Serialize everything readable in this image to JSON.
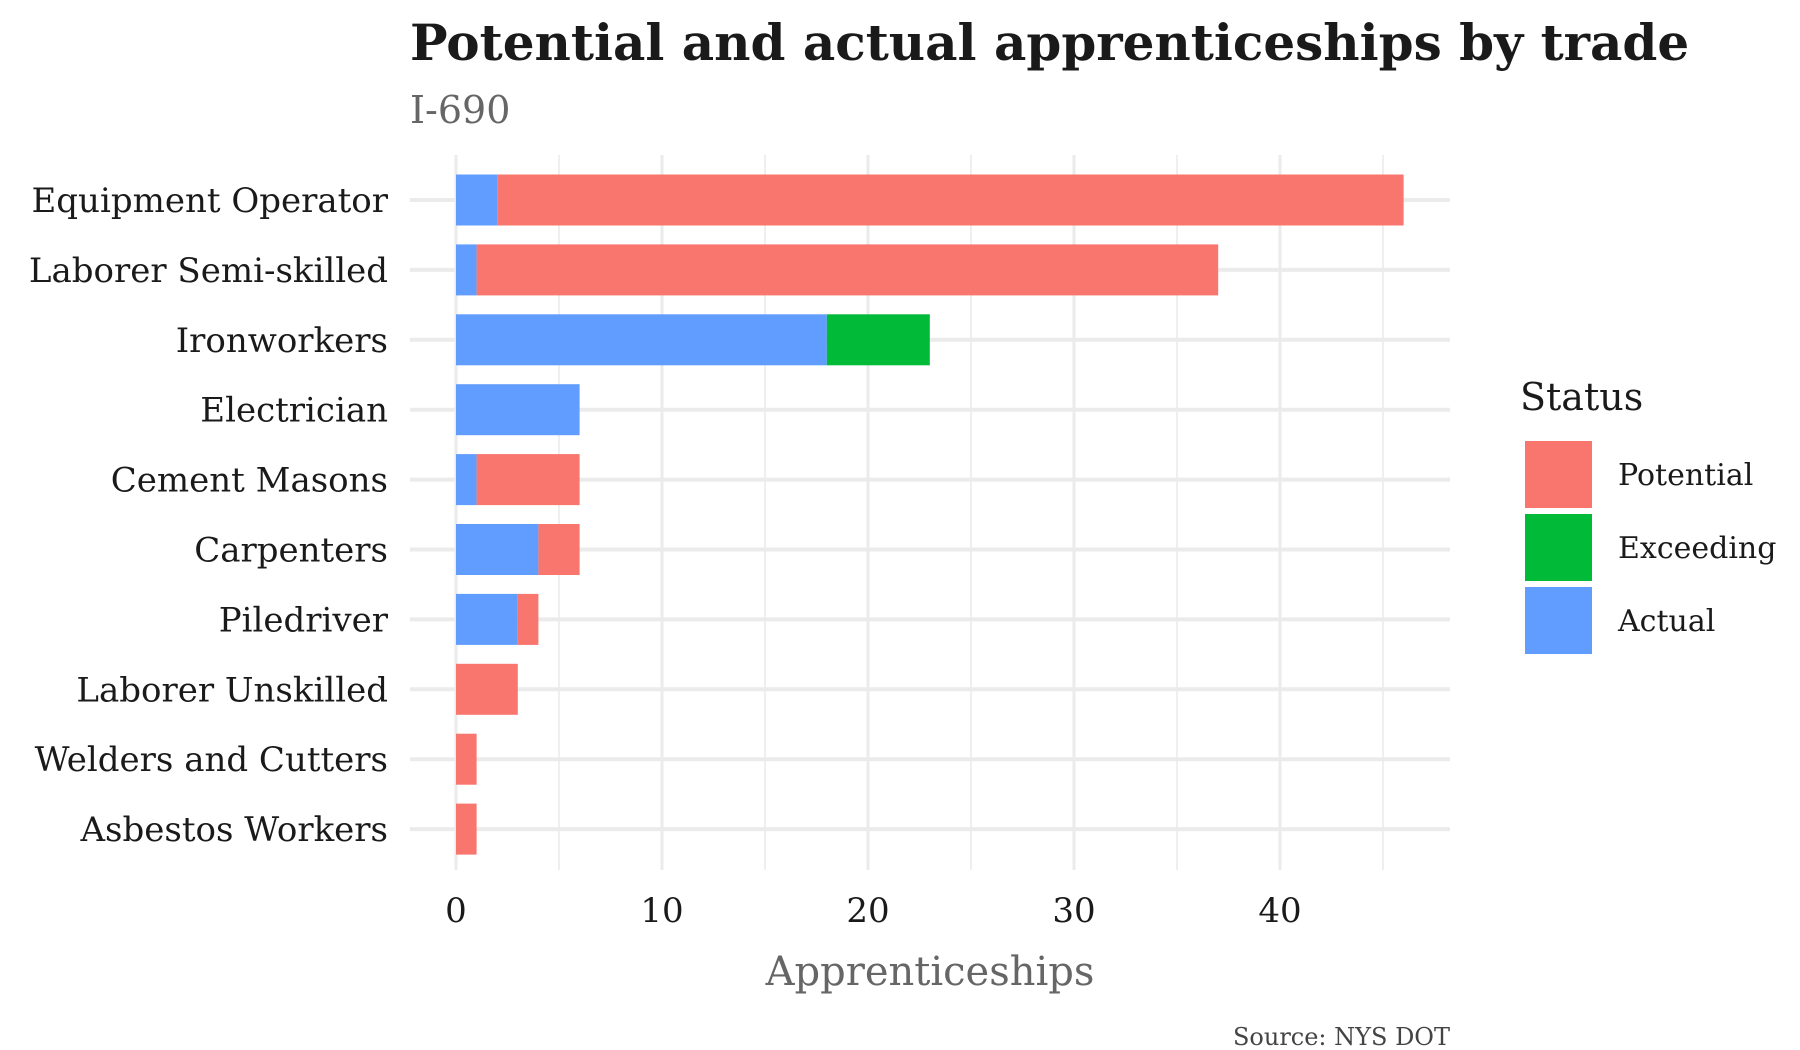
{
  "chart_data": {
    "type": "bar",
    "orientation": "horizontal",
    "stacked": true,
    "title": "Potential and actual apprenticeships by trade",
    "subtitle": "I-690",
    "xlabel": "Apprenticeships",
    "ylabel": "",
    "caption": "Source: NYS DOT",
    "xlim": [
      0,
      48
    ],
    "xticks": [
      0,
      10,
      20,
      30,
      40
    ],
    "grid": true,
    "legend_position": "right",
    "legend_title": "Status",
    "legend_order": [
      "Potential",
      "Exceeding",
      "Actual"
    ],
    "stack_order": [
      "Actual",
      "Exceeding",
      "Potential"
    ],
    "categories": [
      "Equipment Operator",
      "Laborer Semi-skilled",
      "Ironworkers",
      "Electrician",
      "Cement Masons",
      "Carpenters",
      "Piledriver",
      "Laborer Unskilled",
      "Welders and Cutters",
      "Asbestos Workers"
    ],
    "series": [
      {
        "name": "Actual",
        "color": "#619CFF",
        "values": [
          2,
          1,
          18,
          6,
          1,
          4,
          3,
          0,
          0,
          0
        ]
      },
      {
        "name": "Exceeding",
        "color": "#00BA38",
        "values": [
          0,
          0,
          5,
          0,
          0,
          0,
          0,
          0,
          0,
          0
        ]
      },
      {
        "name": "Potential",
        "color": "#F8766D",
        "values": [
          44,
          36,
          0,
          0,
          5,
          2,
          1,
          3,
          1,
          1
        ]
      }
    ]
  }
}
